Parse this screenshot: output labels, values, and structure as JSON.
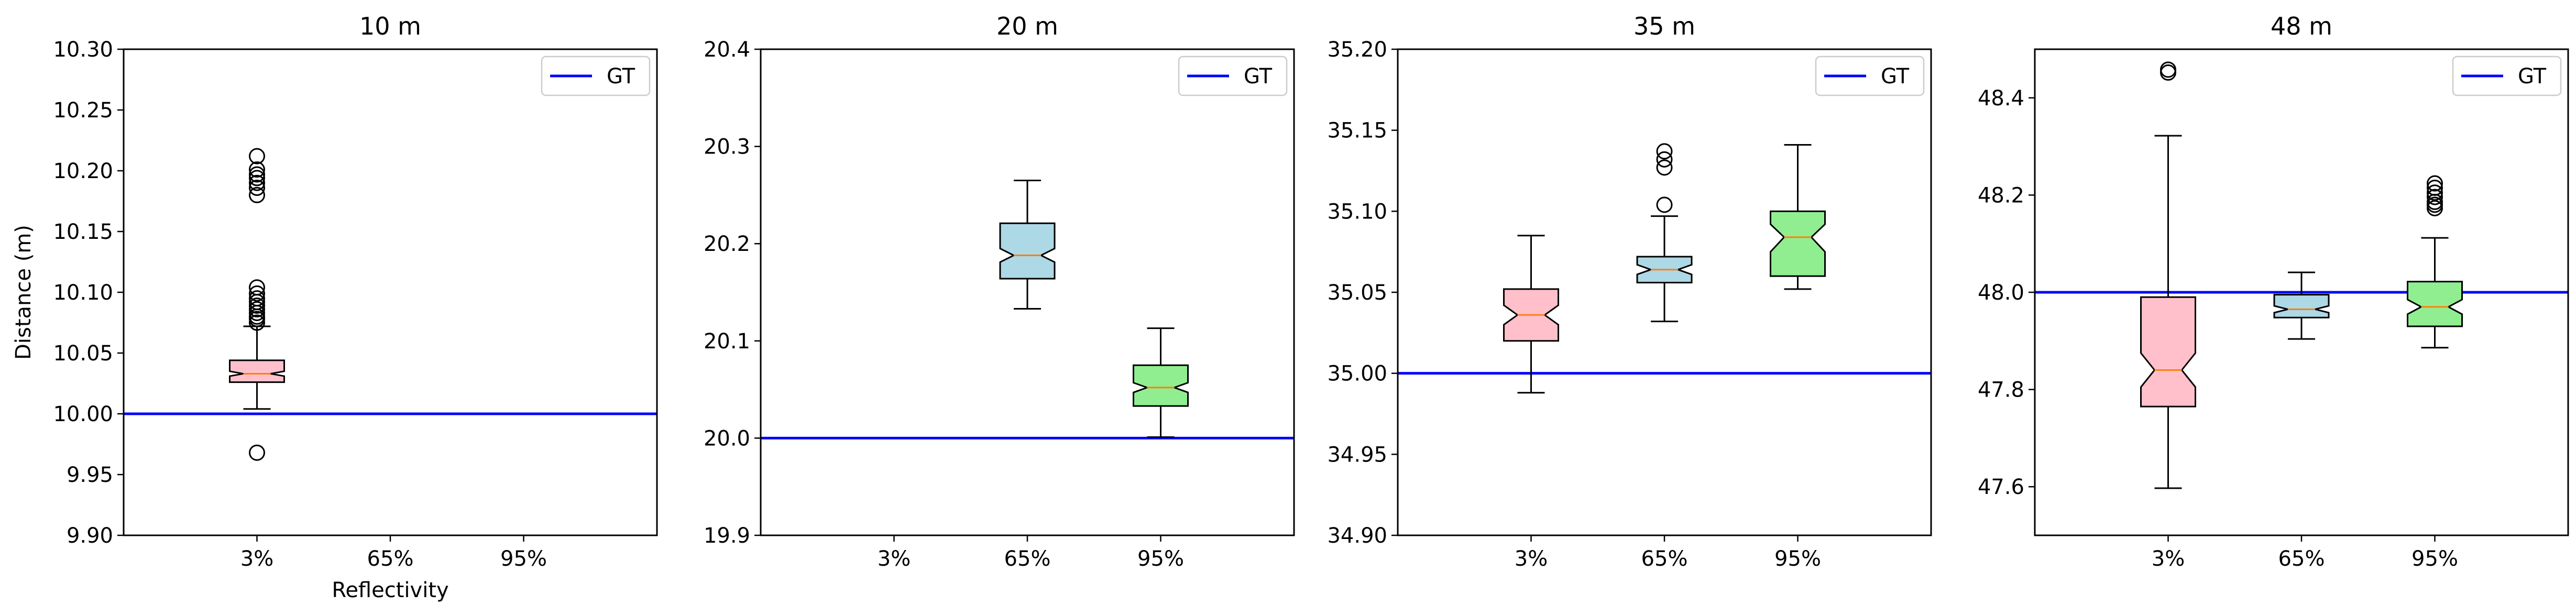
{
  "figure": {
    "ylabel": "Distance (m)",
    "xlabel": "Reflectivity"
  },
  "colors": {
    "gt": "#0000ff",
    "median": "#ff7f0e",
    "box_3": "#ffc0cb",
    "box_65": "#add8e6",
    "box_95": "#90ee90"
  },
  "chart_data": [
    {
      "type": "box",
      "title": "10 m",
      "categories": [
        "3%",
        "65%",
        "95%"
      ],
      "ylim": [
        9.9,
        10.3
      ],
      "yticks": [
        9.9,
        9.95,
        10.0,
        10.05,
        10.1,
        10.15,
        10.2,
        10.25,
        10.3
      ],
      "ytick_labels": [
        "9.90",
        "9.95",
        "10.00",
        "10.05",
        "10.10",
        "10.15",
        "10.20",
        "10.25",
        "10.30"
      ],
      "ylabel": "Distance (m)",
      "xlabel": "Reflectivity",
      "legend": {
        "label": "GT",
        "placement": "top-right"
      },
      "gt": 10.0,
      "boxes": [
        {
          "category": "3%",
          "q1": 10.026,
          "median": 10.033,
          "q3": 10.044,
          "whisker_low": 10.004,
          "whisker_high": 10.072,
          "notch_low": 10.031,
          "notch_high": 10.035,
          "outliers": [
            9.968,
            10.075,
            10.078,
            10.08,
            10.083,
            10.086,
            10.089,
            10.092,
            10.095,
            10.099,
            10.104,
            10.18,
            10.186,
            10.19,
            10.194,
            10.197,
            10.201,
            10.212
          ]
        },
        null,
        null
      ]
    },
    {
      "type": "box",
      "title": "20 m",
      "categories": [
        "3%",
        "65%",
        "95%"
      ],
      "ylim": [
        19.9,
        20.4
      ],
      "yticks": [
        19.9,
        20.0,
        20.1,
        20.2,
        20.3,
        20.4
      ],
      "ytick_labels": [
        "19.9",
        "20.0",
        "20.1",
        "20.2",
        "20.3",
        "20.4"
      ],
      "legend": {
        "label": "GT",
        "placement": "top-right"
      },
      "gt": 20.0,
      "boxes": [
        null,
        {
          "category": "65%",
          "q1": 20.164,
          "median": 20.188,
          "q3": 20.221,
          "whisker_low": 20.133,
          "whisker_high": 20.265,
          "notch_low": 20.181,
          "notch_high": 20.195,
          "outliers": []
        },
        {
          "category": "95%",
          "q1": 20.033,
          "median": 20.052,
          "q3": 20.075,
          "whisker_low": 20.001,
          "whisker_high": 20.113,
          "notch_low": 20.047,
          "notch_high": 20.057,
          "outliers": []
        }
      ]
    },
    {
      "type": "box",
      "title": "35 m",
      "categories": [
        "3%",
        "65%",
        "95%"
      ],
      "ylim": [
        34.9,
        35.2
      ],
      "yticks": [
        34.9,
        34.95,
        35.0,
        35.05,
        35.1,
        35.15,
        35.2
      ],
      "ytick_labels": [
        "34.90",
        "34.95",
        "35.00",
        "35.05",
        "35.10",
        "35.15",
        "35.20"
      ],
      "legend": {
        "label": "GT",
        "placement": "top-right"
      },
      "gt": 35.0,
      "boxes": [
        {
          "category": "3%",
          "q1": 35.02,
          "median": 35.036,
          "q3": 35.052,
          "whisker_low": 34.988,
          "whisker_high": 35.085,
          "notch_low": 35.03,
          "notch_high": 35.042,
          "outliers": []
        },
        {
          "category": "65%",
          "q1": 35.056,
          "median": 35.064,
          "q3": 35.072,
          "whisker_low": 35.032,
          "whisker_high": 35.097,
          "notch_low": 35.061,
          "notch_high": 35.067,
          "outliers": [
            35.104,
            35.127,
            35.132,
            35.137
          ]
        },
        {
          "category": "95%",
          "q1": 35.06,
          "median": 35.084,
          "q3": 35.1,
          "whisker_low": 35.052,
          "whisker_high": 35.141,
          "notch_low": 35.075,
          "notch_high": 35.092,
          "outliers": []
        }
      ]
    },
    {
      "type": "box",
      "title": "48 m",
      "categories": [
        "3%",
        "65%",
        "95%"
      ],
      "ylim": [
        47.5,
        48.5
      ],
      "yticks": [
        47.6,
        47.8,
        48.0,
        48.2,
        48.4
      ],
      "ytick_labels": [
        "47.6",
        "47.8",
        "48.0",
        "48.2",
        "48.4"
      ],
      "legend": {
        "label": "GT",
        "placement": "top-right"
      },
      "gt": 48.0,
      "boxes": [
        {
          "category": "3%",
          "q1": 47.765,
          "median": 47.84,
          "q3": 47.99,
          "whisker_low": 47.597,
          "whisker_high": 48.322,
          "notch_low": 47.805,
          "notch_high": 47.875,
          "outliers": [
            48.452,
            48.458
          ]
        },
        {
          "category": "65%",
          "q1": 47.948,
          "median": 47.965,
          "q3": 47.995,
          "whisker_low": 47.904,
          "whisker_high": 48.041,
          "notch_low": 47.958,
          "notch_high": 47.972,
          "outliers": []
        },
        {
          "category": "95%",
          "q1": 47.93,
          "median": 47.97,
          "q3": 48.022,
          "whisker_low": 47.886,
          "whisker_high": 48.112,
          "notch_low": 47.955,
          "notch_high": 47.985,
          "outliers": [
            48.173,
            48.18,
            48.186,
            48.196,
            48.205,
            48.215,
            48.224
          ]
        }
      ]
    }
  ]
}
